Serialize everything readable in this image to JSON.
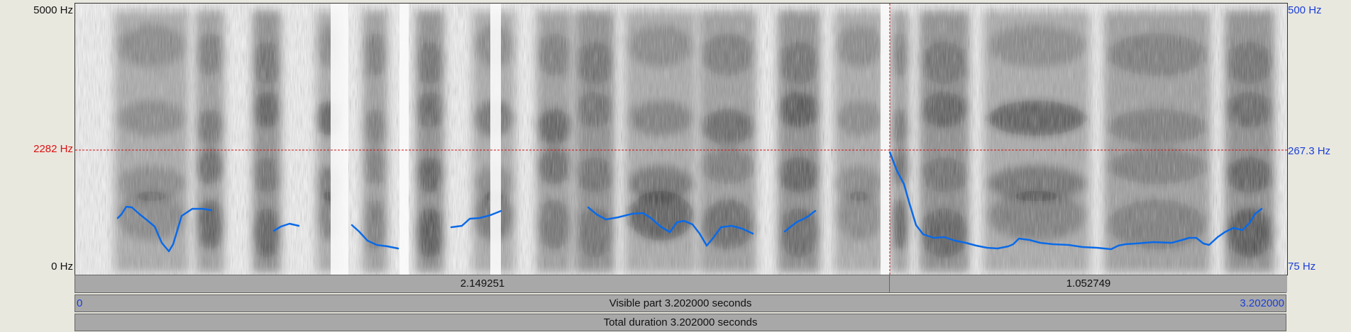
{
  "freq_axis": {
    "top": "5000 Hz",
    "cursor": "2282 Hz",
    "bottom": "0 Hz"
  },
  "pitch_axis": {
    "top": "500 Hz",
    "cursor": "267.3 Hz",
    "bottom": "75 Hz"
  },
  "segments": {
    "left_duration": "2.149251",
    "right_duration": "1.052749"
  },
  "visible_bar": {
    "start": "0",
    "label": "Visible part 3.202000 seconds",
    "end": "3.202000"
  },
  "total_bar": {
    "label": "Total duration 3.202000 seconds"
  },
  "colors": {
    "pitch": "#0a6ae8",
    "cursor": "#d11111",
    "axis_blue": "#1a3fd6"
  }
}
